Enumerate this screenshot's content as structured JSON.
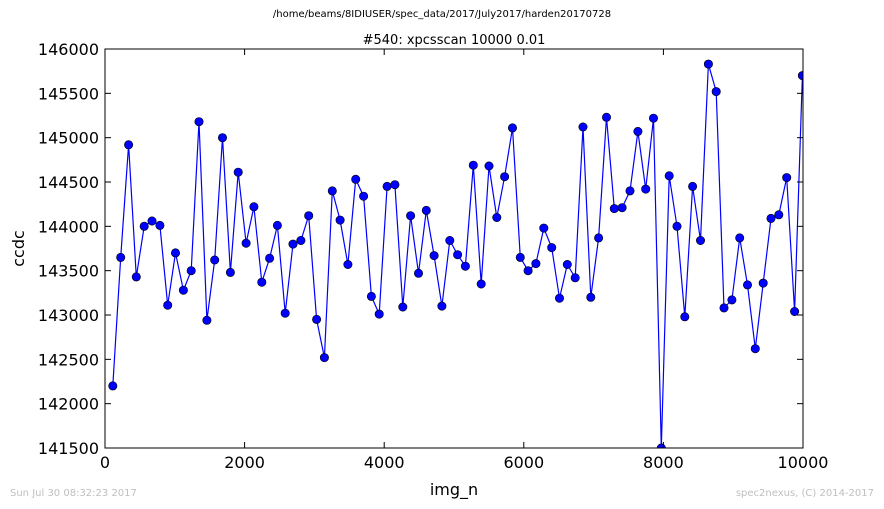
{
  "suptitle": "/home/beams/8IDIUSER/spec_data/2017/July2017/harden20170728",
  "footer": {
    "timestamp": "Sun Jul 30 08:32:23 2017",
    "credit": "spec2nexus, (C) 2014-2017"
  },
  "chart_data": {
    "type": "line",
    "title": "#540: xpcsscan 10000 0.01",
    "xlabel": "img_n",
    "ylabel": "ccdc",
    "xlim": [
      0,
      10000
    ],
    "ylim": [
      141500,
      146000
    ],
    "xticks": [
      0,
      2000,
      4000,
      6000,
      8000,
      10000
    ],
    "yticks": [
      141500,
      142000,
      142500,
      143000,
      143500,
      144000,
      144500,
      145000,
      145500,
      146000
    ],
    "grid": false,
    "line_color": "#0000ff",
    "marker": "circle",
    "series": [
      {
        "x": [
          112,
          225,
          338,
          449,
          562,
          674,
          786,
          898,
          1010,
          1123,
          1235,
          1347,
          1460,
          1572,
          1684,
          1796,
          1909,
          2021,
          2133,
          2246,
          2358,
          2470,
          2582,
          2694,
          2807,
          2919,
          3031,
          3143,
          3256,
          3368,
          3480,
          3592,
          3705,
          3817,
          3929,
          4041,
          4154,
          4266,
          4378,
          4491,
          4603,
          4715,
          4827,
          4940,
          5052,
          5164,
          5276,
          5389,
          5501,
          5613,
          5725,
          5838,
          5950,
          6062,
          6174,
          6287,
          6399,
          6511,
          6623,
          6736,
          6848,
          6960,
          7072,
          7185,
          7297,
          7409,
          7521,
          7634,
          7746,
          7858,
          7970,
          8083,
          8195,
          8307,
          8419,
          8532,
          8644,
          8756,
          8868,
          8981,
          9093,
          9205,
          9317,
          9430,
          9542,
          9654,
          9766,
          9879,
          9991
        ],
        "y": [
          142200,
          143650,
          144920,
          143430,
          144000,
          144060,
          144010,
          143110,
          143700,
          143280,
          143500,
          145180,
          142940,
          143620,
          145000,
          143480,
          144610,
          143810,
          144220,
          143370,
          143640,
          144010,
          143020,
          143800,
          143840,
          144120,
          142950,
          142520,
          144400,
          144070,
          143570,
          144530,
          144340,
          143210,
          143010,
          144450,
          144470,
          143090,
          144120,
          143470,
          144180,
          143670,
          143100,
          143840,
          143680,
          143550,
          144690,
          143350,
          144680,
          144100,
          144560,
          145110,
          143650,
          143500,
          143580,
          143980,
          143760,
          143190,
          143570,
          143420,
          145120,
          143200,
          143870,
          145230,
          144200,
          144210,
          144400,
          145070,
          144420,
          145220,
          141500,
          144570,
          144000,
          142980,
          144450,
          143840,
          145830,
          145520,
          143080,
          143170,
          143870,
          143340,
          142620,
          143360,
          144090,
          144130,
          144550,
          143040,
          145700
        ]
      }
    ]
  }
}
